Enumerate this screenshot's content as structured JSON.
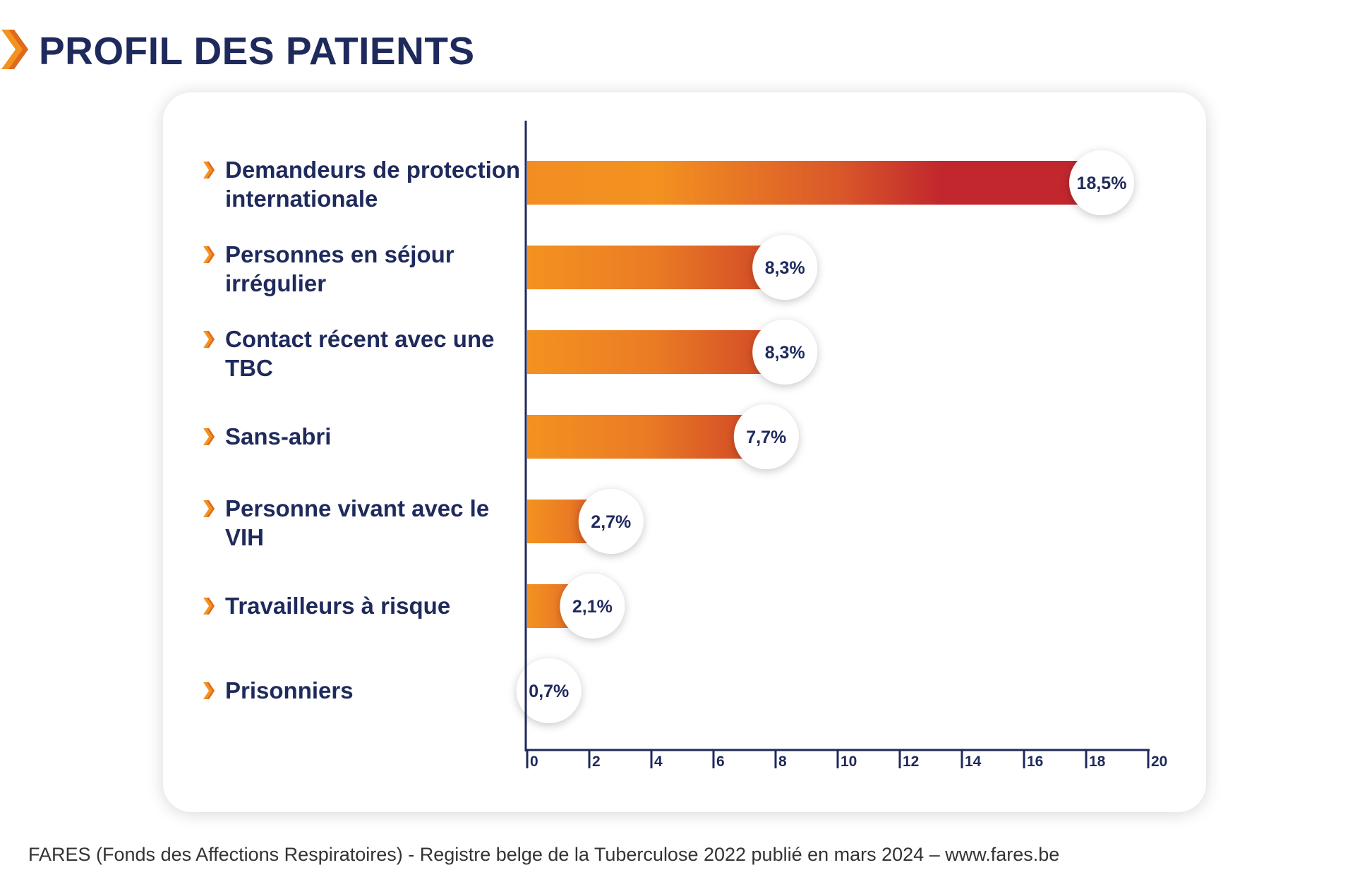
{
  "title": "PROFIL DES PATIENTS",
  "source": "FARES (Fonds des Affections Respiratoires) - Registre belge de la Tuberculose 2022 publié en mars 2024 – www.fares.be",
  "colors": {
    "title": "#1f2a5c",
    "accent_orange": "#f39220",
    "accent_red": "#c1272d"
  },
  "chart_data": {
    "type": "bar",
    "orientation": "horizontal",
    "categories": [
      "Demandeurs de protection internationale",
      "Personnes en séjour irrégulier",
      "Contact récent avec une TBC",
      "Sans-abri",
      "Personne vivant avec le VIH",
      "Travailleurs à risque",
      "Prisonniers"
    ],
    "values": [
      18.5,
      8.3,
      8.3,
      7.7,
      2.7,
      2.1,
      0.7
    ],
    "data_labels": [
      "18,5%",
      "8,3%",
      "8,3%",
      "7,7%",
      "2,7%",
      "2,1%",
      "0,7%"
    ],
    "xlim": [
      0,
      20
    ],
    "xticks": [
      0,
      2,
      4,
      6,
      8,
      10,
      12,
      14,
      16,
      18,
      20
    ],
    "grid": false
  }
}
